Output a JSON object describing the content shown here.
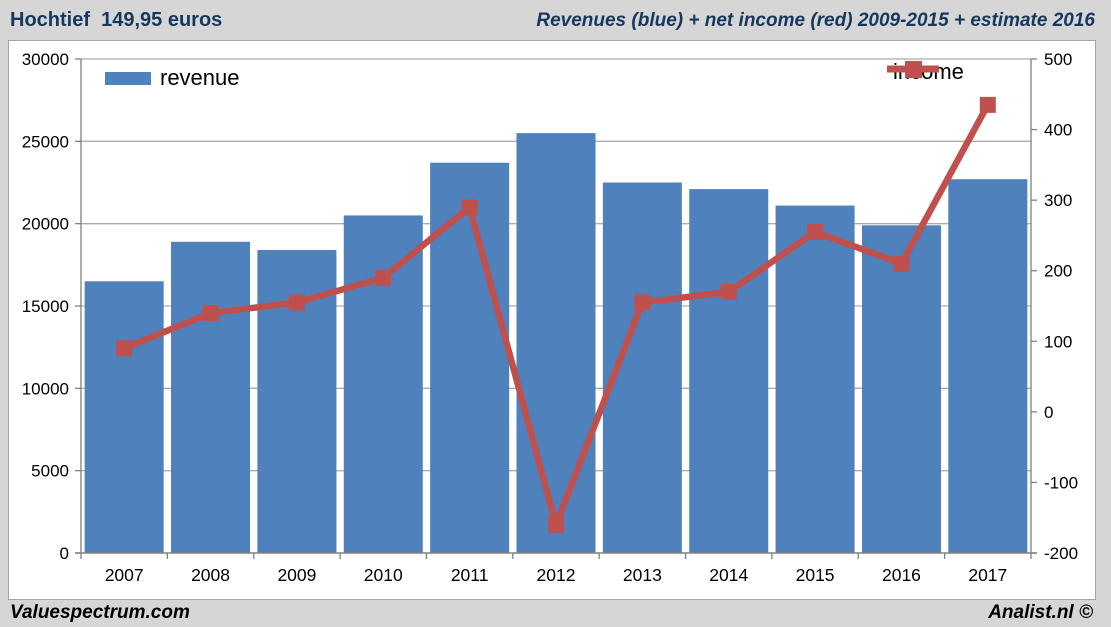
{
  "header": {
    "title": "Hochtief  149,95 euros",
    "subtitle": "Revenues (blue) + net income (red) 2009-2015 + estimate 2016"
  },
  "legend": {
    "revenue_label": "revenue",
    "income_label": "income"
  },
  "footer": {
    "left": "Valuespectrum.com",
    "right": "Analist.nl ©"
  },
  "colors": {
    "bar_blue": "#4F81BD",
    "line_red": "#C0504D",
    "header_text": "#17375E",
    "grid": "#ABABAB",
    "axis": "#808080",
    "background": "#D6D6D6"
  },
  "chart_data": {
    "type": "bar",
    "title": "Revenues (blue) + net income (red) 2009-2015 + estimate 2016",
    "categories": [
      "2007",
      "2008",
      "2009",
      "2010",
      "2011",
      "2012",
      "2013",
      "2014",
      "2015",
      "2016",
      "2017"
    ],
    "series": [
      {
        "name": "revenue",
        "type": "bar",
        "axis": "left",
        "color": "#4F81BD",
        "values": [
          16500,
          18900,
          18400,
          20500,
          23700,
          25500,
          22500,
          22100,
          21100,
          19900,
          22700
        ]
      },
      {
        "name": "income",
        "type": "line",
        "axis": "right",
        "color": "#C0504D",
        "values": [
          90,
          140,
          155,
          190,
          290,
          -160,
          155,
          170,
          255,
          210,
          435
        ]
      }
    ],
    "left_axis": {
      "min": 0,
      "max": 30000,
      "step": 5000,
      "ticks": [
        "30000",
        "25000",
        "20000",
        "15000",
        "10000",
        "5000",
        "0"
      ]
    },
    "right_axis": {
      "min": -200,
      "max": 500,
      "step": 100,
      "ticks": [
        "500",
        "400",
        "300",
        "200",
        "100",
        "0",
        "-100",
        "-200"
      ]
    },
    "grid": true,
    "legend_position": "top"
  }
}
